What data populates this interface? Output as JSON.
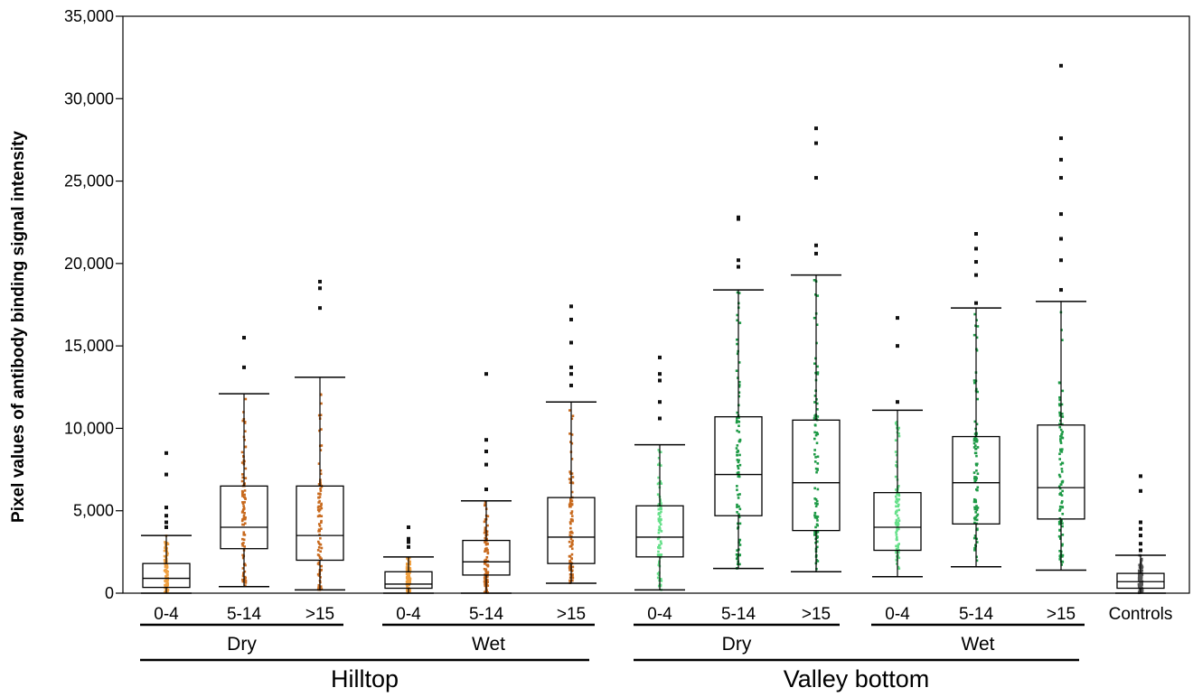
{
  "chart_data": {
    "type": "box",
    "title": "",
    "xlabel": "",
    "ylabel": "Pixel values of antibody binding signal intensity",
    "ylim": [
      0,
      35000
    ],
    "yticks": [
      0,
      5000,
      10000,
      15000,
      20000,
      25000,
      30000,
      35000
    ],
    "ytick_labels": [
      "0",
      "5,000",
      "10,000",
      "15,000",
      "20,000",
      "25,000",
      "30,000",
      "35,000"
    ],
    "grid": false,
    "legend": "none",
    "categories": [
      "0-4",
      "5-14",
      ">15",
      "0-4",
      "5-14",
      ">15",
      "0-4",
      "5-14",
      ">15",
      "0-4",
      "5-14",
      ">15",
      "Controls"
    ],
    "subgroups": [
      {
        "label": "Dry",
        "from": 0,
        "to": 2
      },
      {
        "label": "Wet",
        "from": 3,
        "to": 5
      },
      {
        "label": "Dry",
        "from": 6,
        "to": 8
      },
      {
        "label": "Wet",
        "from": 9,
        "to": 11
      }
    ],
    "groups": [
      {
        "label": "Hilltop",
        "from": 0,
        "to": 5
      },
      {
        "label": "Valley bottom",
        "from": 6,
        "to": 11
      }
    ],
    "colors": {
      "hilltop_points": "#c86a1e",
      "hilltop_young_points": "#f0a040",
      "valley_points": "#1e9a46",
      "valley_young_points": "#66e08a",
      "outliers": "#111111",
      "box": "#000000"
    },
    "boxes": [
      {
        "category": "0-4",
        "group": "Hilltop",
        "subgroup": "Dry",
        "whisker_low": 0,
        "q1": 350,
        "median": 900,
        "q3": 1800,
        "whisker_high": 3500,
        "outliers": [
          4000,
          4300,
          4700,
          5200,
          7200,
          8500
        ]
      },
      {
        "category": "5-14",
        "group": "Hilltop",
        "subgroup": "Dry",
        "whisker_low": 400,
        "q1": 2700,
        "median": 4000,
        "q3": 6500,
        "whisker_high": 12100,
        "outliers": [
          13700,
          15500
        ]
      },
      {
        "category": ">15",
        "group": "Hilltop",
        "subgroup": "Dry",
        "whisker_low": 200,
        "q1": 2000,
        "median": 3500,
        "q3": 6500,
        "whisker_high": 13100,
        "outliers": [
          17300,
          18500,
          18900
        ]
      },
      {
        "category": "0-4",
        "group": "Hilltop",
        "subgroup": "Wet",
        "whisker_low": 0,
        "q1": 300,
        "median": 550,
        "q3": 1300,
        "whisker_high": 2200,
        "outliers": [
          2800,
          3100,
          3300,
          4000
        ]
      },
      {
        "category": "5-14",
        "group": "Hilltop",
        "subgroup": "Wet",
        "whisker_low": 0,
        "q1": 1100,
        "median": 1900,
        "q3": 3200,
        "whisker_high": 5600,
        "outliers": [
          6300,
          7800,
          8600,
          9300,
          13300
        ]
      },
      {
        "category": ">15",
        "group": "Hilltop",
        "subgroup": "Wet",
        "whisker_low": 600,
        "q1": 1800,
        "median": 3400,
        "q3": 5800,
        "whisker_high": 11600,
        "outliers": [
          12600,
          13300,
          13700,
          15200,
          16600,
          17400
        ]
      },
      {
        "category": "0-4",
        "group": "Valley bottom",
        "subgroup": "Dry",
        "whisker_low": 200,
        "q1": 2200,
        "median": 3400,
        "q3": 5300,
        "whisker_high": 9000,
        "outliers": [
          10600,
          11600,
          12900,
          13300,
          14300
        ]
      },
      {
        "category": "5-14",
        "group": "Valley bottom",
        "subgroup": "Dry",
        "whisker_low": 1500,
        "q1": 4700,
        "median": 7200,
        "q3": 10700,
        "whisker_high": 18400,
        "outliers": [
          19800,
          20200,
          22700,
          22800
        ]
      },
      {
        "category": ">15",
        "group": "Valley bottom",
        "subgroup": "Dry",
        "whisker_low": 1300,
        "q1": 3800,
        "median": 6700,
        "q3": 10500,
        "whisker_high": 19300,
        "outliers": [
          20600,
          21100,
          25200,
          27300,
          28200
        ]
      },
      {
        "category": "0-4",
        "group": "Valley bottom",
        "subgroup": "Wet",
        "whisker_low": 1000,
        "q1": 2600,
        "median": 4000,
        "q3": 6100,
        "whisker_high": 11100,
        "outliers": [
          11600,
          15000,
          16700
        ]
      },
      {
        "category": "5-14",
        "group": "Valley bottom",
        "subgroup": "Wet",
        "whisker_low": 1600,
        "q1": 4200,
        "median": 6700,
        "q3": 9500,
        "whisker_high": 17300,
        "outliers": [
          17600,
          19300,
          20100,
          20900,
          21800
        ]
      },
      {
        "category": ">15",
        "group": "Valley bottom",
        "subgroup": "Wet",
        "whisker_low": 1400,
        "q1": 4500,
        "median": 6400,
        "q3": 10200,
        "whisker_high": 17700,
        "outliers": [
          18400,
          20200,
          21500,
          23000,
          25200,
          26300,
          27600,
          32000
        ]
      },
      {
        "category": "Controls",
        "group": "",
        "subgroup": "",
        "whisker_low": 0,
        "q1": 300,
        "median": 700,
        "q3": 1200,
        "whisker_high": 2300,
        "outliers": [
          2600,
          3000,
          3500,
          3900,
          4300,
          6200,
          7100
        ]
      }
    ]
  }
}
